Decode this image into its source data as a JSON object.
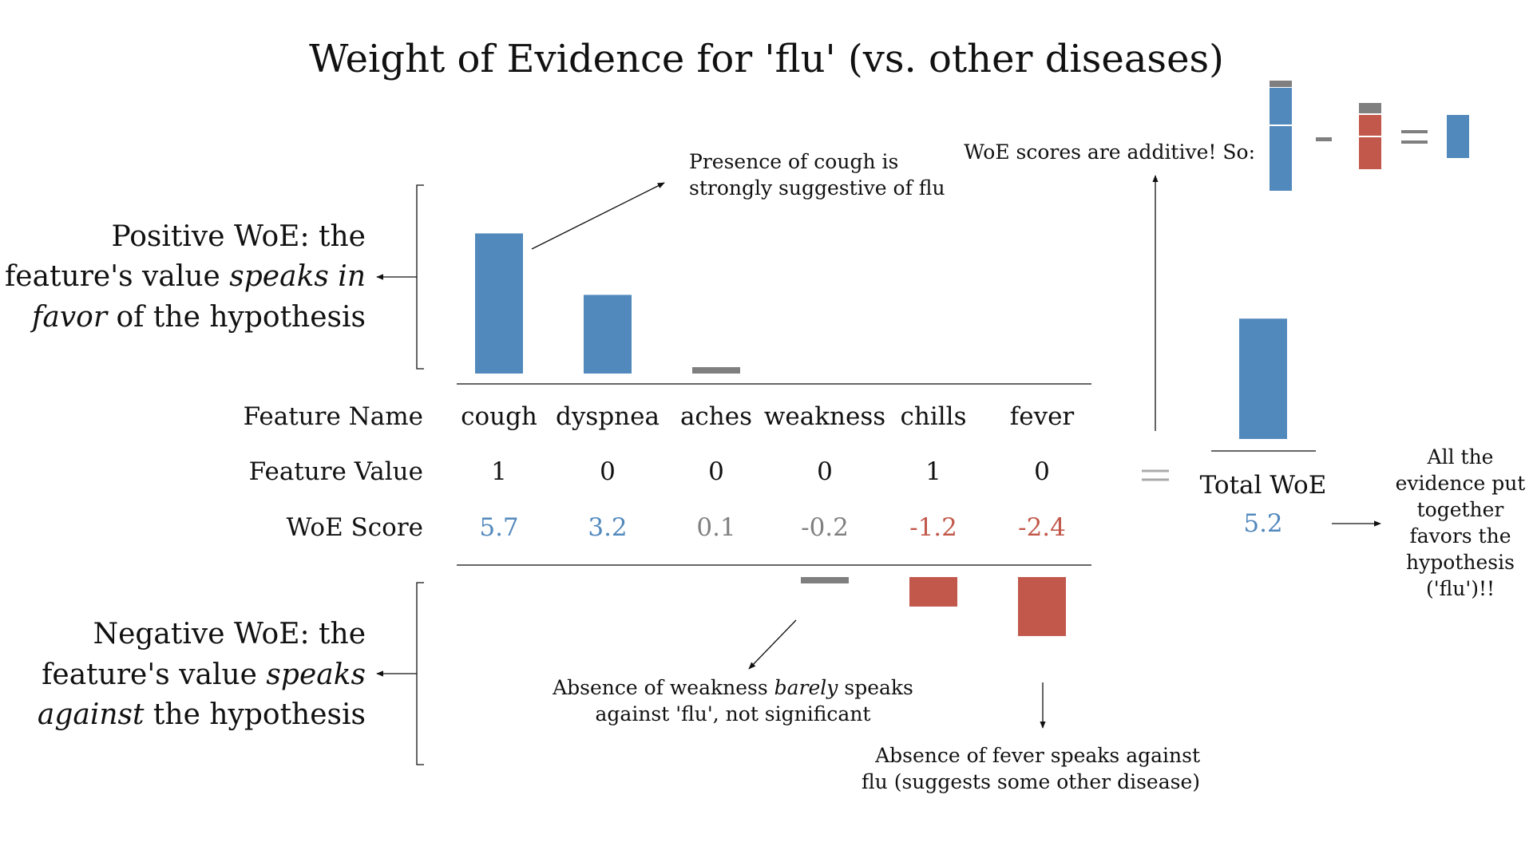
{
  "title": "Weight of Evidence for 'flu' (vs. other diseases)",
  "colors": {
    "positive": "#5289bd",
    "neutral": "#7f7f7f",
    "negative": "#c2584b",
    "text": "#111111"
  },
  "chart_data": {
    "type": "bar",
    "categories": [
      "cough",
      "dyspnea",
      "aches",
      "weakness",
      "chills",
      "fever"
    ],
    "feature_values": [
      "1",
      "0",
      "0",
      "0",
      "1",
      "0"
    ],
    "woe_labels": [
      "5.7",
      "3.2",
      "0.1",
      "-0.2",
      "-1.2",
      "-2.4"
    ],
    "values": [
      5.7,
      3.2,
      0.1,
      -0.2,
      -1.2,
      -2.4
    ],
    "significance": [
      "positive",
      "positive",
      "neutral",
      "neutral",
      "negative",
      "negative"
    ],
    "row_labels": {
      "name": "Feature Name",
      "value": "Feature Value",
      "score": "WoE Score"
    },
    "total": {
      "label": "Total WoE",
      "value_label": "5.2",
      "value": 5.2
    },
    "positive_label": [
      "Positive WoE: the",
      "feature's value ",
      "speaks in",
      "favor",
      " of the hypothesis"
    ],
    "negative_label": [
      "Negative WoE: the",
      "feature's value ",
      "speaks",
      "against",
      " the hypothesis"
    ],
    "annotations": {
      "cough": [
        "Presence of cough is",
        "strongly suggestive of flu"
      ],
      "weakness": [
        "Absence of weakness ",
        "barely",
        " speaks",
        "against 'flu', not significant"
      ],
      "fever": [
        "Absence of fever speaks against",
        "flu (suggests some other disease)"
      ],
      "additive": "WoE scores are additive! So:",
      "total": [
        "All the",
        "evidence put",
        "together",
        "favors the",
        "hypothesis",
        "('flu')!!"
      ]
    }
  }
}
